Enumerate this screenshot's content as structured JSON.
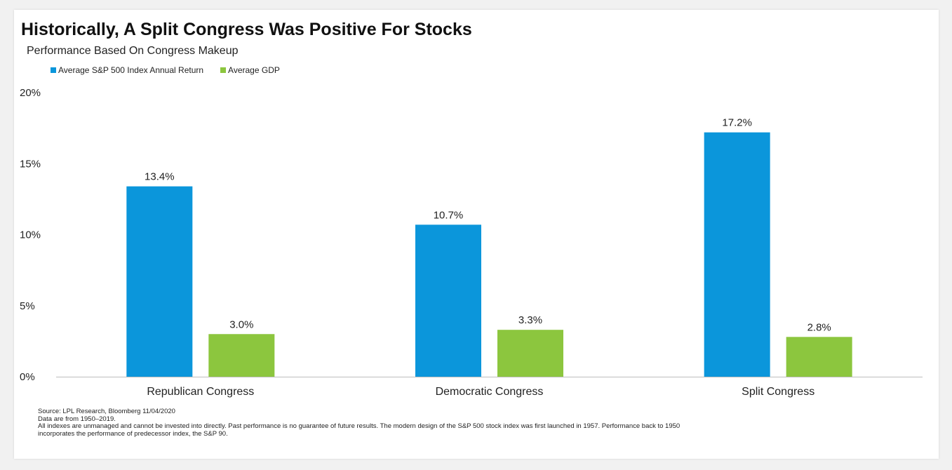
{
  "title": "Historically, A Split Congress Was Positive For Stocks",
  "subtitle": "Performance Based On Congress Makeup",
  "colors": {
    "sp500": "#0b96db",
    "gdp": "#8cc63e",
    "axis": "#bdbdbd"
  },
  "chart_data": {
    "type": "bar",
    "categories": [
      "Republican Congress",
      "Democratic Congress",
      "Split Congress"
    ],
    "series": [
      {
        "name": "Average S&P 500 Index Annual Return",
        "values": [
          13.4,
          10.7,
          17.2
        ],
        "labels": [
          "13.4%",
          "10.7%",
          "17.2%"
        ]
      },
      {
        "name": "Average GDP",
        "values": [
          3.0,
          3.3,
          2.8
        ],
        "labels": [
          "3.0%",
          "3.3%",
          "2.8%"
        ]
      }
    ],
    "ylim": [
      0,
      20
    ],
    "yticks": [
      0,
      5,
      10,
      15,
      20
    ],
    "ytick_labels": [
      "0%",
      "5%",
      "10%",
      "15%",
      "20%"
    ],
    "legend": "top-left",
    "grid": false
  },
  "notes": {
    "source": "Source: LPL Research, Bloomberg   11/04/2020",
    "data_range": "Data are from 1950–2019.",
    "disclaimer_1": "All indexes are unmanaged and cannot be invested into directly. Past performance is no guarantee of future results. The modern design of the S&P 500 stock index was first launched in 1957. Performance back to 1950",
    "disclaimer_2": "incorporates the performance of predecessor index, the S&P 90."
  }
}
